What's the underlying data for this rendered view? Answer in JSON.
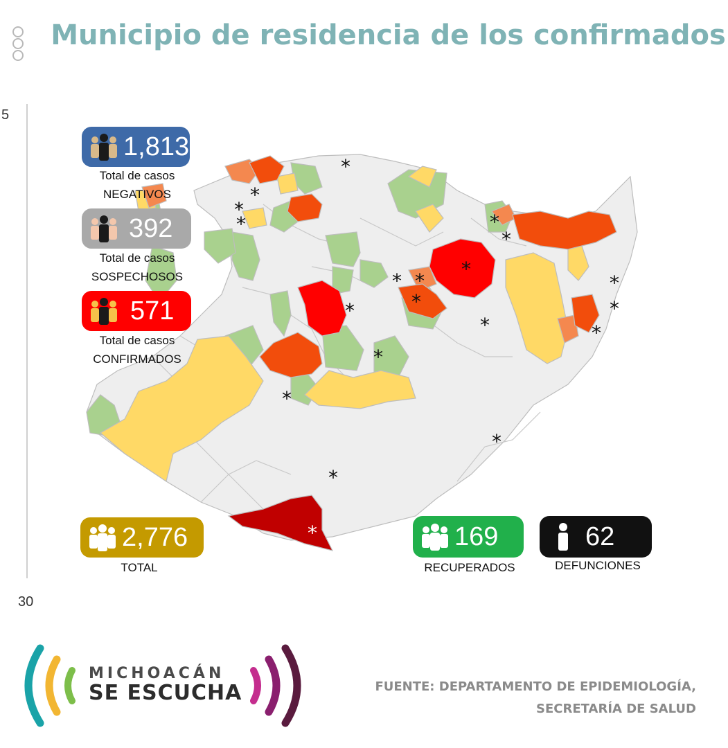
{
  "title": "Municipio de residencia de los confirmados",
  "margin_labels": {
    "top": "5",
    "bottom": "30"
  },
  "colors": {
    "title": "#7fb3b5",
    "negativos": "#3e6aa8",
    "sospechosos": "#a9a9a9",
    "confirmados": "#ff0000",
    "total": "#c49a00",
    "recuperados": "#21b04b",
    "defunciones": "#111111",
    "map_red": "#ff0000",
    "map_dark_red": "#c00000",
    "map_orange": "#f24d0c",
    "map_light_orange": "#f4884f",
    "map_yellow": "#ffd966",
    "map_green": "#a9d18e",
    "map_gray": "#eeeeee"
  },
  "stats": {
    "negativos": {
      "value": "1,813",
      "caption_line1": "Total de casos",
      "caption_line2": "NEGATIVOS",
      "icon": "people-group-icon"
    },
    "sospechosos": {
      "value": "392",
      "caption_line1": "Total de casos",
      "caption_line2": "SOSPECHOSOS",
      "icon": "people-group-icon"
    },
    "confirmados": {
      "value": "571",
      "caption_line1": "Total de casos",
      "caption_line2": "CONFIRMADOS",
      "icon": "people-group-icon"
    },
    "total": {
      "value": "2,776",
      "caption": "TOTAL",
      "icon": "people-group-icon"
    },
    "recuperados": {
      "value": "169",
      "caption": "RECUPERADOS",
      "icon": "people-group-icon"
    },
    "defunciones": {
      "value": "62",
      "caption": "DEFUNCIONES",
      "icon": "person-icon"
    }
  },
  "map": {
    "marker_symbol": "*",
    "legend_categories": [
      "red",
      "dark_red",
      "orange",
      "light_orange",
      "yellow",
      "green",
      "gray"
    ]
  },
  "logo": {
    "line1": "MICHOACÁN",
    "line2": "SE ESCUCHA"
  },
  "source": {
    "line1": "FUENTE: DEPARTAMENTO DE EPIDEMIOLOGÍA,",
    "line2": "SECRETARÍA DE SALUD"
  }
}
